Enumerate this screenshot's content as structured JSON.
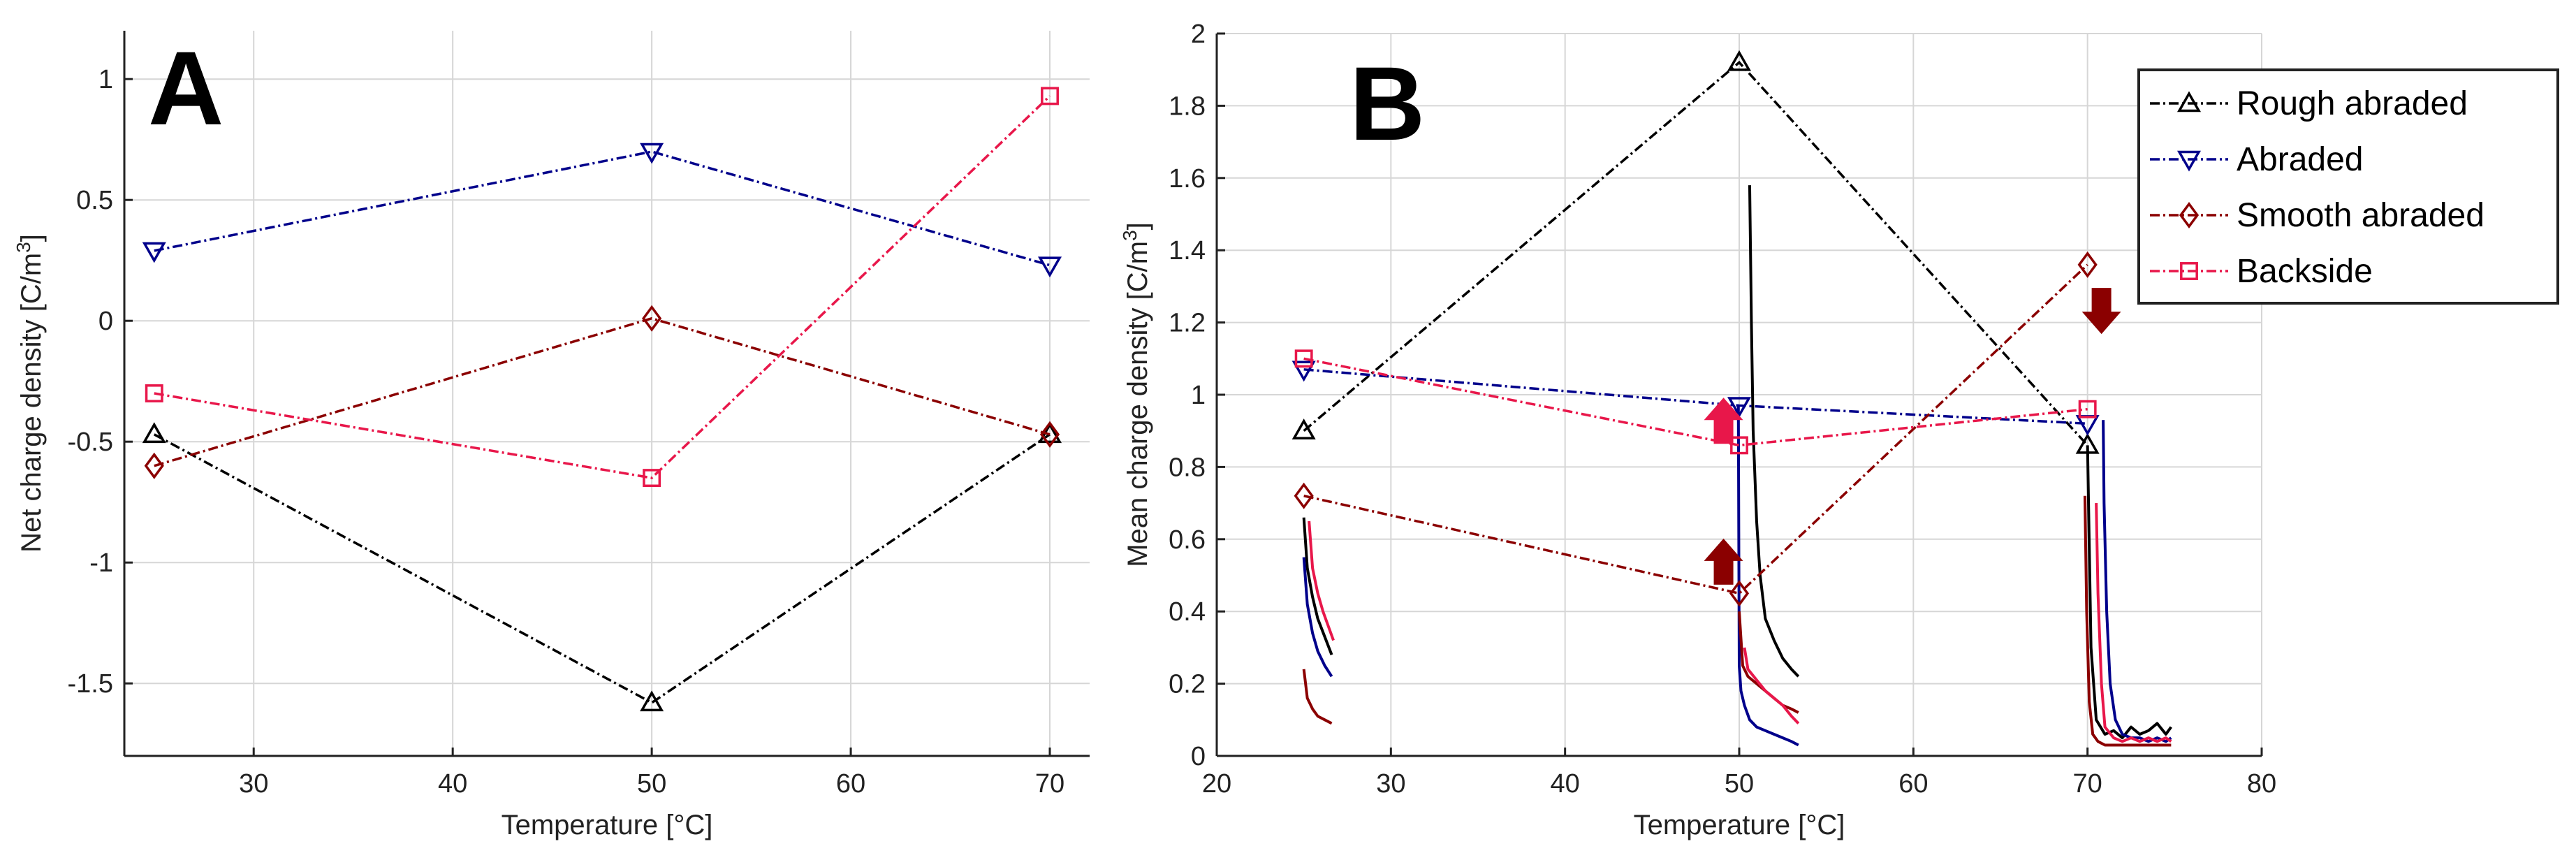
{
  "chart_data": [
    {
      "id": "A",
      "type": "line",
      "panel_label": "A",
      "xlabel": "Temperature [°C]",
      "ylabel": "Net charge density [C/m",
      "ylabel_sup": "3",
      "ylabel_close": "]",
      "xlim": [
        23.5,
        72
      ],
      "ylim": [
        -1.8,
        1.2
      ],
      "xticks": [
        30,
        40,
        50,
        60,
        70
      ],
      "yticks": [
        -1.5,
        -1,
        -0.5,
        0,
        0.5,
        1
      ],
      "grid": true,
      "series": [
        {
          "name": "Rough abraded",
          "color": "#000000",
          "marker": "triangle-up",
          "x": [
            25,
            50,
            70
          ],
          "y": [
            -0.47,
            -1.58,
            -0.47
          ]
        },
        {
          "name": "Abraded",
          "color": "#00008b",
          "marker": "triangle-down",
          "x": [
            25,
            50,
            70
          ],
          "y": [
            0.29,
            0.7,
            0.23
          ]
        },
        {
          "name": "Smooth abraded",
          "color": "#8b0000",
          "marker": "diamond",
          "x": [
            25,
            50,
            70
          ],
          "y": [
            -0.6,
            0.01,
            -0.47
          ]
        },
        {
          "name": "Backside",
          "color": "#e8174a",
          "marker": "square",
          "x": [
            25,
            50,
            70
          ],
          "y": [
            -0.3,
            -0.65,
            0.93
          ]
        }
      ]
    },
    {
      "id": "B",
      "type": "line",
      "panel_label": "B",
      "xlabel": "Temperature [°C]",
      "ylabel": "Mean charge density [C/m",
      "ylabel_sup": "3",
      "ylabel_close": "]",
      "xlim": [
        20,
        80
      ],
      "ylim": [
        0,
        2
      ],
      "xticks": [
        20,
        30,
        40,
        50,
        60,
        70,
        80
      ],
      "yticks": [
        0,
        0.2,
        0.4,
        0.6,
        0.8,
        1,
        1.2,
        1.4,
        1.6,
        1.8,
        2
      ],
      "grid": true,
      "legend": "top-right",
      "series": [
        {
          "name": "Rough abraded",
          "color": "#000000",
          "marker": "triangle-up",
          "x": [
            25,
            50,
            70
          ],
          "y": [
            0.9,
            1.92,
            0.86
          ]
        },
        {
          "name": "Abraded",
          "color": "#00008b",
          "marker": "triangle-down",
          "x": [
            25,
            50,
            70
          ],
          "y": [
            1.07,
            0.97,
            0.92
          ]
        },
        {
          "name": "Smooth abraded",
          "color": "#8b0000",
          "marker": "diamond",
          "x": [
            25,
            50,
            70
          ],
          "y": [
            0.72,
            0.45,
            1.36
          ]
        },
        {
          "name": "Backside",
          "color": "#e8174a",
          "marker": "square",
          "x": [
            25,
            50,
            70
          ],
          "y": [
            1.1,
            0.86,
            0.96
          ]
        }
      ],
      "transients": [
        {
          "series": "Rough abraded",
          "color": "#000000",
          "x": [
            25,
            25.2,
            25.5,
            25.8,
            26.2,
            26.6
          ],
          "y": [
            0.66,
            0.52,
            0.44,
            0.38,
            0.33,
            0.28
          ]
        },
        {
          "series": "Abraded",
          "color": "#00008b",
          "x": [
            25,
            25.2,
            25.5,
            25.8,
            26.2,
            26.6
          ],
          "y": [
            0.55,
            0.42,
            0.34,
            0.29,
            0.25,
            0.22
          ]
        },
        {
          "series": "Smooth abraded",
          "color": "#8b0000",
          "x": [
            25,
            25.2,
            25.5,
            25.8,
            26.2,
            26.6
          ],
          "y": [
            0.24,
            0.16,
            0.13,
            0.11,
            0.1,
            0.09
          ]
        },
        {
          "series": "Backside",
          "color": "#e8174a",
          "x": [
            25.3,
            25.5,
            25.8,
            26.1,
            26.4,
            26.7
          ],
          "y": [
            0.65,
            0.52,
            0.45,
            0.4,
            0.36,
            0.32
          ]
        },
        {
          "series": "Rough abraded",
          "color": "#000000",
          "x": [
            50.6,
            50.7,
            50.8,
            51.0,
            51.2,
            51.5,
            52.0,
            52.5,
            53.0,
            53.4
          ],
          "y": [
            1.58,
            1.2,
            0.9,
            0.65,
            0.5,
            0.38,
            0.32,
            0.27,
            0.24,
            0.22
          ]
        },
        {
          "series": "Abraded",
          "color": "#00008b",
          "x": [
            49.95,
            50.0,
            50.1,
            50.3,
            50.6,
            51.0,
            51.5,
            52.0,
            52.5,
            53.0,
            53.4
          ],
          "y": [
            0.97,
            0.25,
            0.18,
            0.14,
            0.1,
            0.08,
            0.07,
            0.06,
            0.05,
            0.04,
            0.03
          ]
        },
        {
          "series": "Smooth abraded",
          "color": "#8b0000",
          "x": [
            50.0,
            50.2,
            50.5,
            51.0,
            51.5,
            52.0,
            52.5,
            53.0,
            53.4
          ],
          "y": [
            0.4,
            0.25,
            0.22,
            0.2,
            0.18,
            0.16,
            0.14,
            0.13,
            0.12
          ]
        },
        {
          "series": "Backside",
          "color": "#e8174a",
          "x": [
            50.3,
            50.5,
            51.0,
            51.5,
            52.0,
            52.5,
            53.0,
            53.4
          ],
          "y": [
            0.3,
            0.24,
            0.21,
            0.18,
            0.16,
            0.14,
            0.11,
            0.09
          ]
        },
        {
          "series": "Smooth abraded",
          "color": "#8b0000",
          "x": [
            69.85,
            69.95,
            70.1,
            70.3,
            70.6,
            71.0,
            72.0,
            73.0,
            74.0,
            74.8
          ],
          "y": [
            0.72,
            0.4,
            0.15,
            0.06,
            0.04,
            0.03,
            0.03,
            0.03,
            0.03,
            0.03
          ]
        },
        {
          "series": "Rough abraded",
          "color": "#000000",
          "x": [
            70.0,
            70.2,
            70.5,
            71.0,
            71.5,
            72.0,
            72.5,
            73.0,
            73.5,
            74.0,
            74.5,
            74.8
          ],
          "y": [
            0.86,
            0.3,
            0.1,
            0.06,
            0.07,
            0.05,
            0.08,
            0.06,
            0.07,
            0.09,
            0.06,
            0.08
          ]
        },
        {
          "series": "Abraded",
          "color": "#00008b",
          "x": [
            70.9,
            70.95,
            71.1,
            71.3,
            71.6,
            72.0,
            72.5,
            73.0,
            73.5,
            74.0,
            74.5,
            74.8
          ],
          "y": [
            0.93,
            0.7,
            0.4,
            0.2,
            0.1,
            0.06,
            0.05,
            0.05,
            0.04,
            0.05,
            0.04,
            0.05
          ]
        },
        {
          "series": "Backside",
          "color": "#e8174a",
          "x": [
            70.5,
            70.6,
            70.8,
            71.0,
            71.5,
            72.0,
            72.5,
            73.0,
            73.5,
            74.0,
            74.5,
            74.8
          ],
          "y": [
            0.7,
            0.45,
            0.2,
            0.08,
            0.05,
            0.04,
            0.05,
            0.04,
            0.05,
            0.04,
            0.05,
            0.04
          ]
        }
      ],
      "annotations": [
        {
          "type": "arrow-up",
          "color": "#e8174a",
          "x": 49.1,
          "y": 0.93
        },
        {
          "type": "arrow-up",
          "color": "#8b0000",
          "x": 49.1,
          "y": 0.54
        },
        {
          "type": "arrow-down",
          "color": "#8b0000",
          "x": 70.8,
          "y": 1.23
        }
      ]
    }
  ]
}
